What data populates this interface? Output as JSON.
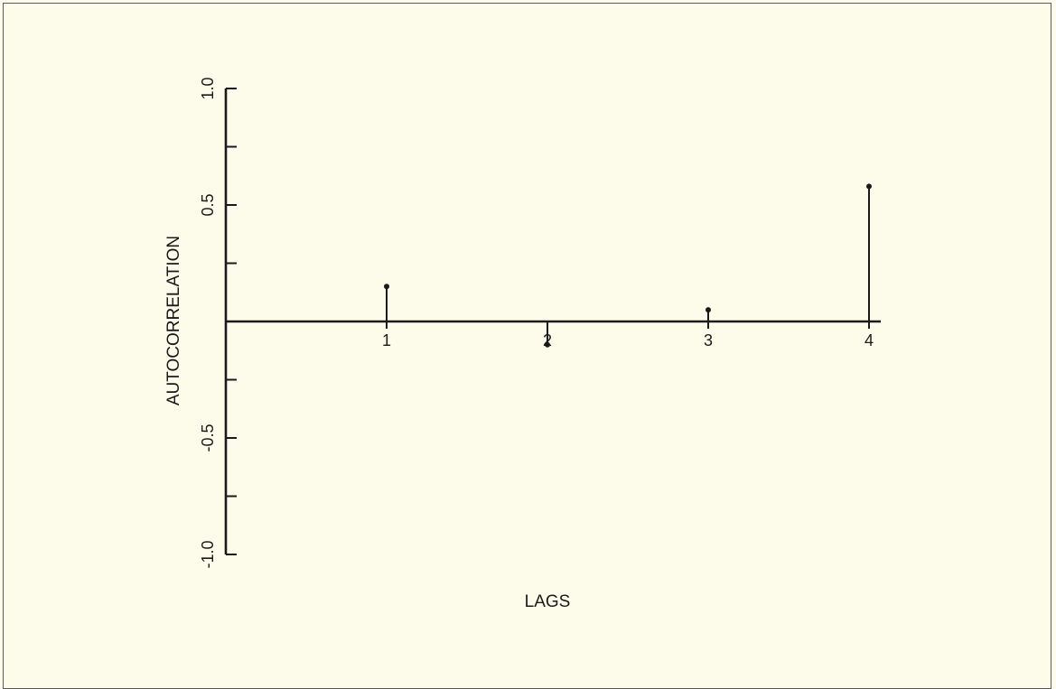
{
  "chart_data": {
    "type": "stem",
    "xlabel": "LAGS",
    "ylabel": "AUTOCORRELATION",
    "ylim": [
      -1.0,
      1.0
    ],
    "xlim": [
      0,
      4
    ],
    "y_tick_values": [
      -1.0,
      -0.75,
      -0.5,
      -0.25,
      0,
      0.25,
      0.5,
      0.75,
      1.0
    ],
    "y_tick_labels": [
      {
        "value": 1.0,
        "label": "1.0"
      },
      {
        "value": 0.5,
        "label": "0.5"
      },
      {
        "value": -0.5,
        "label": "-0.5"
      },
      {
        "value": -1.0,
        "label": "-1.0"
      }
    ],
    "x_tick_labels": [
      {
        "value": 1,
        "label": "1"
      },
      {
        "value": 2,
        "label": "2"
      },
      {
        "value": 3,
        "label": "3"
      },
      {
        "value": 4,
        "label": "4"
      }
    ],
    "points": [
      {
        "lag": 1,
        "value": 0.15
      },
      {
        "lag": 2,
        "value": -0.1
      },
      {
        "lag": 3,
        "value": 0.05
      },
      {
        "lag": 4,
        "value": 0.58
      }
    ],
    "grid": false,
    "legend": "none",
    "colors": {
      "background": "#fdfbe9",
      "ink": "#1a1a1a",
      "frame": "#5a5a5a"
    }
  }
}
